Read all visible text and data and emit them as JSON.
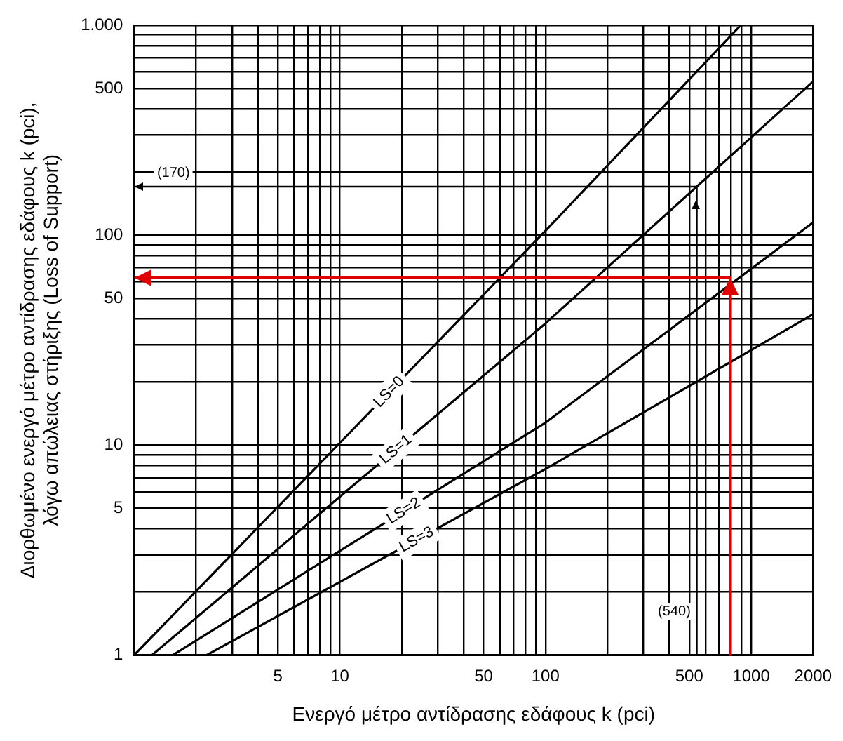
{
  "chart_data": {
    "type": "line",
    "log": "xy",
    "grid": true,
    "marker": "none",
    "line_style": "solid",
    "xlabel": "Ενεργό μέτρο αντίδρασης εδάφους k (pci)",
    "ylabel": "Διορθωμένο ενεργό μέτρο αντίδρασης εδάφους k (pci),\nλόγω απώλειας στήριξης (Loss of Support)",
    "xlim": [
      1,
      2000
    ],
    "ylim": [
      1,
      1000
    ],
    "xticks": [
      {
        "value": 1,
        "label": null
      },
      {
        "value": 2,
        "label": null
      },
      {
        "value": 3,
        "label": null
      },
      {
        "value": 4,
        "label": null
      },
      5,
      {
        "value": 6,
        "label": null
      },
      {
        "value": 7,
        "label": null
      },
      {
        "value": 8,
        "label": null
      },
      {
        "value": 9,
        "label": null
      },
      10,
      {
        "value": 20,
        "label": null
      },
      {
        "value": 30,
        "label": null
      },
      {
        "value": 40,
        "label": null
      },
      50,
      {
        "value": 60,
        "label": null
      },
      {
        "value": 70,
        "label": null
      },
      {
        "value": 80,
        "label": null
      },
      {
        "value": 90,
        "label": null
      },
      100,
      {
        "value": 200,
        "label": null
      },
      {
        "value": 300,
        "label": null
      },
      {
        "value": 400,
        "label": null
      },
      500,
      {
        "value": 600,
        "label": null
      },
      {
        "value": 700,
        "label": null
      },
      {
        "value": 800,
        "label": null
      },
      {
        "value": 900,
        "label": null
      },
      1000,
      2000
    ],
    "yticks": [
      1,
      {
        "value": 2,
        "label": null
      },
      {
        "value": 3,
        "label": null
      },
      {
        "value": 4,
        "label": null
      },
      5,
      {
        "value": 6,
        "label": null
      },
      {
        "value": 7,
        "label": null
      },
      {
        "value": 8,
        "label": null
      },
      {
        "value": 9,
        "label": null
      },
      10,
      {
        "value": 20,
        "label": null
      },
      {
        "value": 30,
        "label": null
      },
      {
        "value": 40,
        "label": null
      },
      50,
      {
        "value": 60,
        "label": null
      },
      {
        "value": 70,
        "label": null
      },
      {
        "value": 80,
        "label": null
      },
      {
        "value": 90,
        "label": null
      },
      100,
      {
        "value": 200,
        "label": null
      },
      {
        "value": 300,
        "label": null
      },
      {
        "value": 400,
        "label": null
      },
      500,
      {
        "value": 600,
        "label": null
      },
      {
        "value": 700,
        "label": null
      },
      {
        "value": 800,
        "label": null
      },
      {
        "value": 900,
        "label": null
      },
      {
        "value": 1000,
        "label": "1.000"
      }
    ],
    "series": [
      {
        "name": "LS=0",
        "color": "#000000",
        "x": [
          1,
          100,
          890
        ],
        "values": [
          1,
          105,
          1000
        ]
      },
      {
        "name": "LS=1",
        "color": "#000000",
        "x": [
          1.22,
          100,
          2000
        ],
        "values": [
          1,
          38,
          540
        ]
      },
      {
        "name": "LS=2",
        "color": "#000000",
        "x": [
          1.54,
          100,
          2000
        ],
        "values": [
          1,
          12.8,
          115
        ]
      },
      {
        "name": "LS=3",
        "color": "#000000",
        "x": [
          2.25,
          100,
          2000
        ],
        "values": [
          1,
          7.7,
          42
        ]
      }
    ],
    "annotations": [
      "(170)",
      "(540)"
    ]
  }
}
